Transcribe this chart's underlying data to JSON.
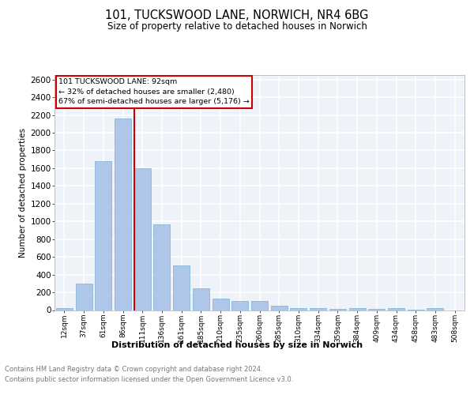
{
  "title1": "101, TUCKSWOOD LANE, NORWICH, NR4 6BG",
  "title2": "Size of property relative to detached houses in Norwich",
  "xlabel": "Distribution of detached houses by size in Norwich",
  "ylabel": "Number of detached properties",
  "categories": [
    "12sqm",
    "37sqm",
    "61sqm",
    "86sqm",
    "111sqm",
    "136sqm",
    "161sqm",
    "185sqm",
    "210sqm",
    "235sqm",
    "260sqm",
    "285sqm",
    "310sqm",
    "334sqm",
    "359sqm",
    "384sqm",
    "409sqm",
    "434sqm",
    "458sqm",
    "483sqm",
    "508sqm"
  ],
  "values": [
    25,
    300,
    1680,
    2160,
    1600,
    970,
    500,
    248,
    125,
    100,
    100,
    50,
    22,
    20,
    15,
    20,
    15,
    20,
    5,
    25,
    0
  ],
  "bar_color": "#aec6e8",
  "bar_edgecolor": "#7bafd4",
  "marker_label": "101 TUCKSWOOD LANE: 92sqm",
  "annotation_line1": "← 32% of detached houses are smaller (2,480)",
  "annotation_line2": "67% of semi-detached houses are larger (5,176) →",
  "annotation_box_color": "#ffffff",
  "annotation_box_edgecolor": "#cc0000",
  "vline_color": "#cc0000",
  "vline_pos": 3.57,
  "ylim": [
    0,
    2650
  ],
  "yticks": [
    0,
    200,
    400,
    600,
    800,
    1000,
    1200,
    1400,
    1600,
    1800,
    2000,
    2200,
    2400,
    2600
  ],
  "footer1": "Contains HM Land Registry data © Crown copyright and database right 2024.",
  "footer2": "Contains public sector information licensed under the Open Government Licence v3.0.",
  "background_color": "#eef2f9",
  "grid_color": "#ffffff",
  "title1_fontsize": 10.5,
  "title2_fontsize": 8.5,
  "ylabel_fontsize": 7.5,
  "xlabel_fontsize": 8,
  "xtick_fontsize": 6.5,
  "ytick_fontsize": 7.5,
  "annotation_fontsize": 6.8,
  "footer_fontsize": 6.0,
  "footer_color": "#777777"
}
